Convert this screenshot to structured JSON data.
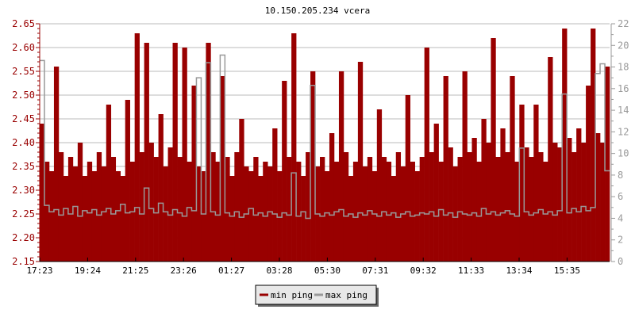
{
  "chart_data": {
    "type": "area",
    "title": "10.150.205.234 vcera",
    "colors": {
      "min_ping": "#990000",
      "max_ping": "#999999"
    },
    "grid": true,
    "legend_placement": "bottom-center",
    "x_tick_labels": [
      "17:23",
      "19:24",
      "21:25",
      "23:26",
      "01:27",
      "03:28",
      "05:30",
      "07:31",
      "09:32",
      "11:33",
      "13:34",
      "15:35"
    ],
    "y_left": {
      "min": 2.15,
      "max": 2.65,
      "ticks": [
        "2.15",
        "2.20",
        "2.25",
        "2.30",
        "2.35",
        "2.40",
        "2.45",
        "2.50",
        "2.55",
        "2.60",
        "2.65"
      ]
    },
    "y_right": {
      "min": 0,
      "max": 22,
      "ticks": [
        "0",
        "2",
        "4",
        "6",
        "8",
        "10",
        "12",
        "14",
        "16",
        "18",
        "20",
        "22"
      ]
    },
    "series": [
      {
        "name": "min ping",
        "axis": "left",
        "values": [
          2.44,
          2.36,
          2.34,
          2.56,
          2.38,
          2.33,
          2.37,
          2.35,
          2.4,
          2.33,
          2.36,
          2.34,
          2.38,
          2.35,
          2.48,
          2.37,
          2.34,
          2.33,
          2.49,
          2.36,
          2.63,
          2.38,
          2.61,
          2.4,
          2.37,
          2.46,
          2.35,
          2.39,
          2.61,
          2.37,
          2.6,
          2.36,
          2.52,
          2.35,
          2.34,
          2.61,
          2.38,
          2.36,
          2.54,
          2.37,
          2.33,
          2.38,
          2.45,
          2.35,
          2.34,
          2.37,
          2.33,
          2.36,
          2.35,
          2.43,
          2.34,
          2.53,
          2.37,
          2.63,
          2.36,
          2.33,
          2.38,
          2.55,
          2.35,
          2.37,
          2.34,
          2.42,
          2.36,
          2.55,
          2.38,
          2.33,
          2.36,
          2.57,
          2.35,
          2.37,
          2.34,
          2.47,
          2.37,
          2.36,
          2.33,
          2.38,
          2.35,
          2.5,
          2.36,
          2.34,
          2.37,
          2.6,
          2.38,
          2.44,
          2.36,
          2.54,
          2.39,
          2.35,
          2.37,
          2.55,
          2.38,
          2.41,
          2.36,
          2.45,
          2.4,
          2.62,
          2.37,
          2.43,
          2.38,
          2.54,
          2.36,
          2.48,
          2.39,
          2.37,
          2.48,
          2.38,
          2.36,
          2.58,
          2.4,
          2.39,
          2.64,
          2.41,
          2.38,
          2.43,
          2.4,
          2.52,
          2.64,
          2.42,
          2.4,
          2.56
        ]
      },
      {
        "name": "max ping",
        "axis": "right",
        "values": [
          18.6,
          5.2,
          4.6,
          4.8,
          4.3,
          4.9,
          4.4,
          5.1,
          4.2,
          4.7,
          4.5,
          4.8,
          4.3,
          4.6,
          4.9,
          4.4,
          4.7,
          5.3,
          4.5,
          4.6,
          5.0,
          4.4,
          6.8,
          4.9,
          4.5,
          5.4,
          4.6,
          4.3,
          4.8,
          4.5,
          4.2,
          5.0,
          4.7,
          17.0,
          4.4,
          18.4,
          4.6,
          4.3,
          19.1,
          4.5,
          4.2,
          4.6,
          4.1,
          4.4,
          4.9,
          4.3,
          4.5,
          4.2,
          4.6,
          4.4,
          4.1,
          4.5,
          4.3,
          8.2,
          4.2,
          4.6,
          4.0,
          16.3,
          4.4,
          4.2,
          4.5,
          4.3,
          4.6,
          4.8,
          4.2,
          4.4,
          4.1,
          4.5,
          4.3,
          4.7,
          4.4,
          4.2,
          4.6,
          4.3,
          4.5,
          4.1,
          4.4,
          4.6,
          4.2,
          4.3,
          4.5,
          4.4,
          4.6,
          4.2,
          4.8,
          4.3,
          4.5,
          4.1,
          4.6,
          4.4,
          4.3,
          4.5,
          4.2,
          4.9,
          4.4,
          4.6,
          4.3,
          4.5,
          4.7,
          4.4,
          4.2,
          10.5,
          4.6,
          4.3,
          4.5,
          4.8,
          4.4,
          4.6,
          4.3,
          4.7,
          15.5,
          4.5,
          4.9,
          4.6,
          5.1,
          4.7,
          5.0,
          17.4,
          18.3,
          8.4
        ]
      }
    ]
  }
}
